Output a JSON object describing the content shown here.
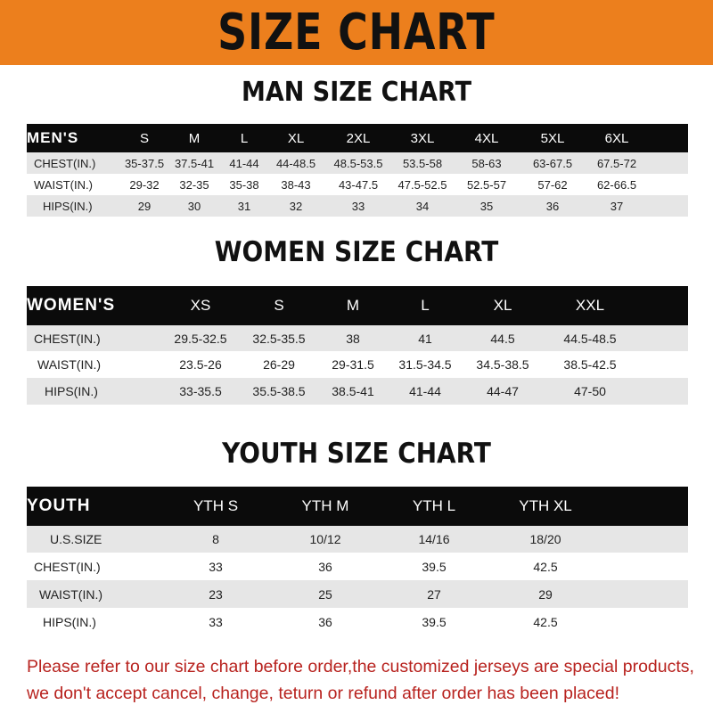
{
  "banner": "SIZE CHART",
  "men": {
    "title": "MAN SIZE CHART",
    "header": [
      "MEN'S",
      "S",
      "M",
      "L",
      "XL",
      "2XL",
      "3XL",
      "4XL",
      "5XL",
      "6XL"
    ],
    "rows": [
      [
        "CHEST(IN.)",
        "35-37.5",
        "37.5-41",
        "41-44",
        "44-48.5",
        "48.5-53.5",
        "53.5-58",
        "58-63",
        "63-67.5",
        "67.5-72"
      ],
      [
        "WAIST(IN.)",
        "29-32",
        "32-35",
        "35-38",
        "38-43",
        "43-47.5",
        "47.5-52.5",
        "52.5-57",
        "57-62",
        "62-66.5"
      ],
      [
        "HIPS(IN.)",
        "29",
        "30",
        "31",
        "32",
        "33",
        "34",
        "35",
        "36",
        "37"
      ]
    ]
  },
  "women": {
    "title": "WOMEN SIZE CHART",
    "header": [
      "WOMEN'S",
      "XS",
      "S",
      "M",
      "L",
      "XL",
      "XXL"
    ],
    "rows": [
      [
        "CHEST(IN.)",
        "29.5-32.5",
        "32.5-35.5",
        "38",
        "41",
        "44.5",
        "44.5-48.5"
      ],
      [
        "WAIST(IN.)",
        "23.5-26",
        "26-29",
        "29-31.5",
        "31.5-34.5",
        "34.5-38.5",
        "38.5-42.5"
      ],
      [
        "HIPS(IN.)",
        "33-35.5",
        "35.5-38.5",
        "38.5-41",
        "41-44",
        "44-47",
        "47-50"
      ]
    ]
  },
  "youth": {
    "title": "YOUTH SIZE CHART",
    "header": [
      "YOUTH",
      "YTH S",
      "YTH M",
      "YTH L",
      "YTH XL"
    ],
    "rows": [
      [
        "U.S.SIZE",
        "8",
        "10/12",
        "14/16",
        "18/20"
      ],
      [
        "CHEST(IN.)",
        "33",
        "36",
        "39.5",
        "42.5"
      ],
      [
        "WAIST(IN.)",
        "23",
        "25",
        "27",
        "29"
      ],
      [
        "HIPS(IN.)",
        "33",
        "36",
        "39.5",
        "42.5"
      ]
    ]
  },
  "note": {
    "line1": "Please refer to our size chart before order,the customized jerseys are special products,",
    "line2": "we don't accept cancel, change, teturn or refund after order has been placed!"
  },
  "colors": {
    "banner": "#ec7f1d",
    "header": "#0b0b0b",
    "stripe": "#e6e6e6",
    "note": "#b8231f"
  }
}
